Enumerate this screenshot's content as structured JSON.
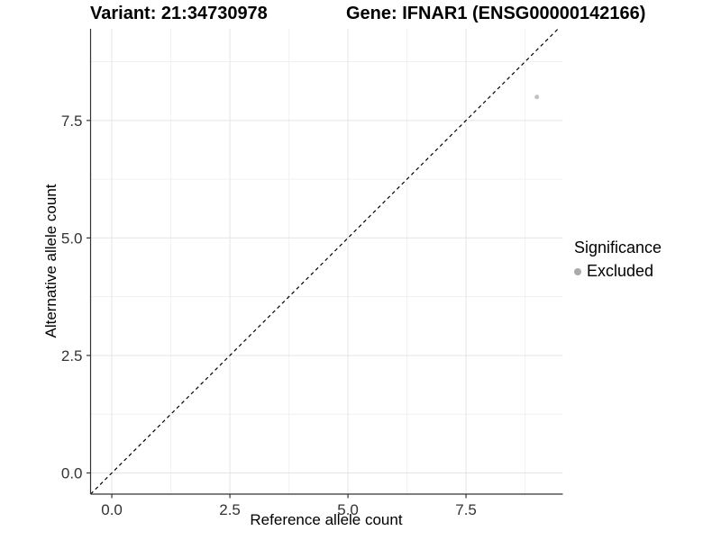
{
  "chart_data": {
    "type": "scatter",
    "titles": {
      "variant": "Variant: 21:34730978",
      "gene": "Gene: IFNAR1 (ENSG00000142166)"
    },
    "xlabel": "Reference allele count",
    "ylabel": "Alternative allele count",
    "xlim": [
      -0.45,
      9.55
    ],
    "ylim": [
      -0.45,
      9.45
    ],
    "x_ticks": [
      0.0,
      2.5,
      5.0,
      7.5
    ],
    "y_ticks": [
      0.0,
      2.5,
      5.0,
      7.5
    ],
    "x_minor_ticks": [
      1.25,
      3.75,
      6.25,
      8.75
    ],
    "y_minor_ticks": [
      1.25,
      3.75,
      6.25,
      8.75
    ],
    "tick_decimals": 1,
    "grid": "major+minor",
    "reference_line": {
      "type": "identity",
      "slope": 1,
      "intercept": 0,
      "style": "dashed",
      "color": "#000000"
    },
    "series": [
      {
        "name": "Excluded",
        "color": "#c0c0c0",
        "points": [
          {
            "x": 9,
            "y": 8
          }
        ]
      }
    ],
    "legend": {
      "title": "Significance",
      "position": "right",
      "items": [
        {
          "label": "Excluded",
          "color": "#aaaaaa"
        }
      ]
    },
    "colors": {
      "grid_major": "#e4e4e4",
      "grid_minor": "#f1f1f1",
      "axis_line": "#333333",
      "tick_mark": "#333333",
      "tick_text": "#333333",
      "panel_background": "#ffffff"
    }
  }
}
